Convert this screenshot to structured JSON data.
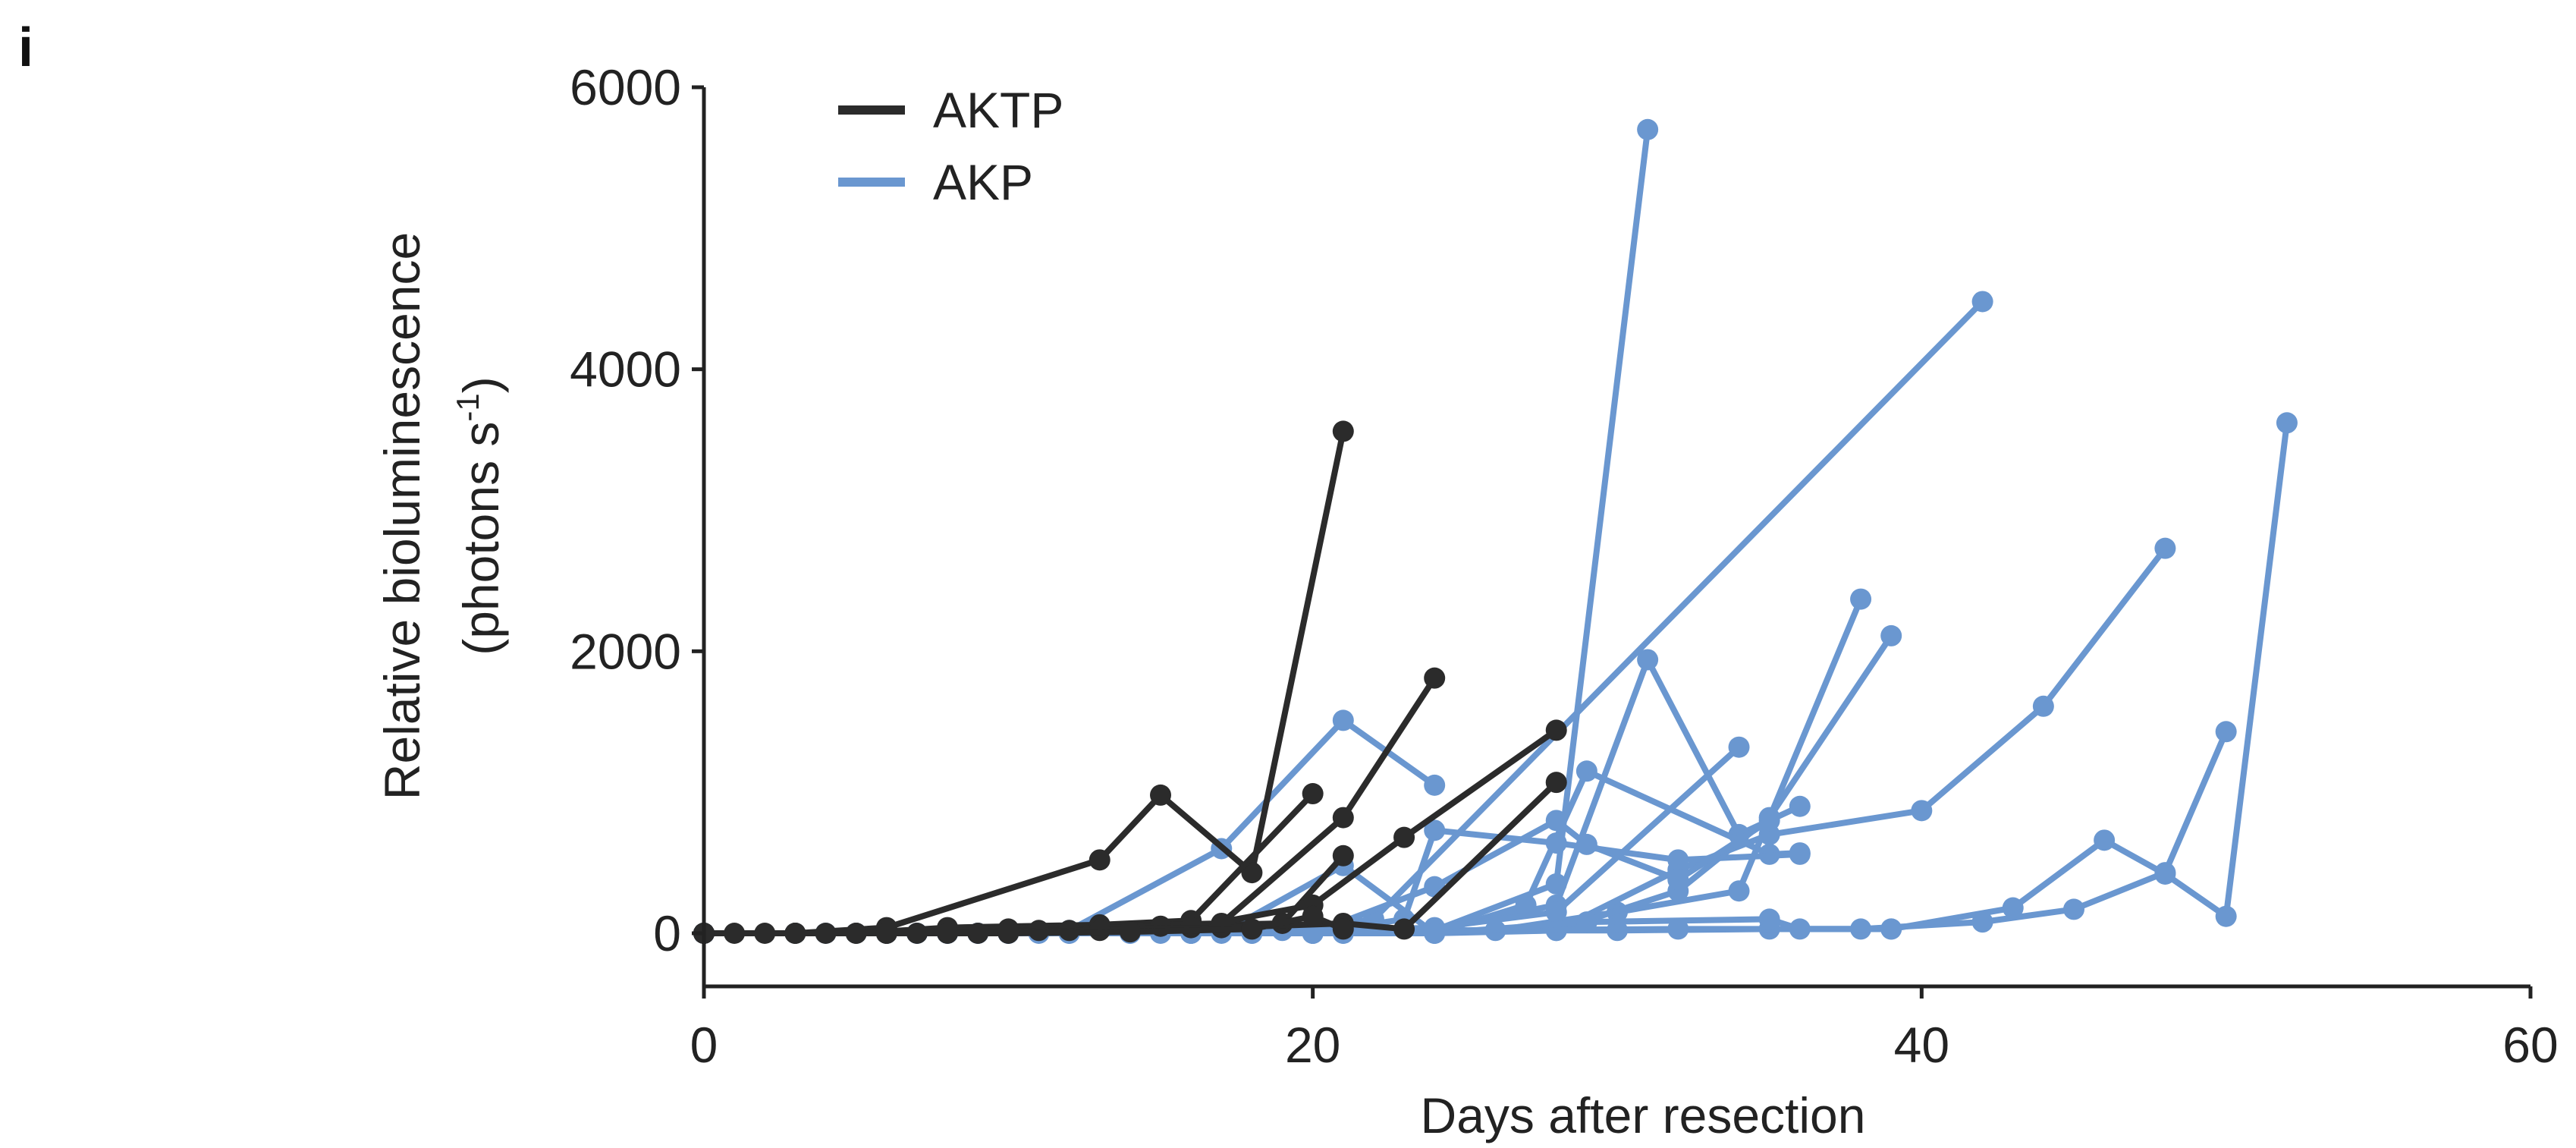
{
  "panel_label": "i",
  "chart_data": {
    "type": "line",
    "xlabel": "Days after resection",
    "ylabel_line1": "Relative bioluminescence",
    "ylabel_line2": "(photons s",
    "ylabel_sup": "-1",
    "ylabel_close": ")",
    "xlim": [
      0,
      60
    ],
    "ylim": [
      0,
      6000
    ],
    "xticks": [
      0,
      20,
      40,
      60
    ],
    "yticks": [
      0,
      2000,
      4000,
      6000
    ],
    "grid": false,
    "legend_position": "top-left",
    "colors": {
      "AKTP": "#2b2b2b",
      "AKP": "#6a97d0"
    },
    "legend": [
      {
        "name": "AKTP",
        "color": "#2b2b2b"
      },
      {
        "name": "AKP",
        "color": "#6a97d0"
      }
    ],
    "series": [
      {
        "group": "AKP",
        "points": [
          [
            0,
            0
          ],
          [
            3,
            0
          ],
          [
            6,
            0
          ],
          [
            9,
            0
          ],
          [
            12,
            20
          ],
          [
            17,
            600
          ],
          [
            21,
            1510
          ],
          [
            24,
            1050
          ]
        ]
      },
      {
        "group": "AKP",
        "points": [
          [
            0,
            0
          ],
          [
            4,
            0
          ],
          [
            8,
            0
          ],
          [
            12,
            0
          ],
          [
            16,
            0
          ],
          [
            20,
            0
          ],
          [
            24,
            20
          ],
          [
            28,
            350
          ],
          [
            31,
            5700
          ]
        ]
      },
      {
        "group": "AKP",
        "points": [
          [
            0,
            0
          ],
          [
            5,
            0
          ],
          [
            10,
            0
          ],
          [
            15,
            0
          ],
          [
            19,
            20
          ],
          [
            22,
            100
          ],
          [
            42,
            4480
          ]
        ]
      },
      {
        "group": "AKP",
        "points": [
          [
            0,
            0
          ],
          [
            6,
            0
          ],
          [
            11,
            0
          ],
          [
            16,
            0
          ],
          [
            21,
            0
          ],
          [
            26,
            20
          ],
          [
            30,
            150
          ],
          [
            34,
            300
          ],
          [
            38,
            2370
          ]
        ]
      },
      {
        "group": "AKP",
        "points": [
          [
            0,
            0
          ],
          [
            6,
            0
          ],
          [
            12,
            0
          ],
          [
            18,
            0
          ],
          [
            24,
            0
          ],
          [
            28,
            20
          ],
          [
            32,
            300
          ],
          [
            35,
            820
          ],
          [
            39,
            2110
          ]
        ]
      },
      {
        "group": "AKP",
        "points": [
          [
            0,
            0
          ],
          [
            7,
            0
          ],
          [
            14,
            0
          ],
          [
            20,
            0
          ],
          [
            24,
            30
          ],
          [
            28,
            200
          ],
          [
            31,
            1940
          ],
          [
            34,
            700
          ],
          [
            36,
            900
          ]
        ]
      },
      {
        "group": "AKP",
        "points": [
          [
            0,
            0
          ],
          [
            7,
            0
          ],
          [
            14,
            0
          ],
          [
            21,
            0
          ],
          [
            28,
            20
          ],
          [
            32,
            450
          ],
          [
            35,
            700
          ],
          [
            40,
            870
          ],
          [
            44,
            1610
          ],
          [
            48,
            2730
          ]
        ]
      },
      {
        "group": "AKP",
        "points": [
          [
            0,
            0
          ],
          [
            8,
            0
          ],
          [
            16,
            0
          ],
          [
            24,
            20
          ],
          [
            30,
            20
          ],
          [
            35,
            30
          ],
          [
            38,
            30
          ],
          [
            42,
            80
          ],
          [
            45,
            170
          ],
          [
            48,
            430
          ],
          [
            50,
            1430
          ]
        ]
      },
      {
        "group": "AKP",
        "points": [
          [
            0,
            0
          ],
          [
            8,
            0
          ],
          [
            16,
            0
          ],
          [
            24,
            20
          ],
          [
            32,
            30
          ],
          [
            39,
            30
          ],
          [
            43,
            180
          ],
          [
            46,
            660
          ],
          [
            48,
            420
          ],
          [
            50,
            120
          ],
          [
            52,
            3620
          ]
        ]
      },
      {
        "group": "AKP",
        "points": [
          [
            0,
            0
          ],
          [
            9,
            0
          ],
          [
            17,
            0
          ],
          [
            21,
            480
          ],
          [
            24,
            0
          ],
          [
            27,
            200
          ],
          [
            29,
            1150
          ],
          [
            35,
            560
          ],
          [
            36,
            570
          ]
        ]
      },
      {
        "group": "AKP",
        "points": [
          [
            0,
            0
          ],
          [
            9,
            0
          ],
          [
            18,
            0
          ],
          [
            24,
            40
          ],
          [
            28,
            150
          ],
          [
            34,
            1320
          ]
        ]
      },
      {
        "group": "AKP",
        "points": [
          [
            0,
            0
          ],
          [
            10,
            0
          ],
          [
            20,
            0
          ],
          [
            23,
            100
          ],
          [
            24,
            730
          ],
          [
            28,
            640
          ],
          [
            32,
            520
          ],
          [
            36,
            560
          ]
        ]
      },
      {
        "group": "AKP",
        "points": [
          [
            0,
            0
          ],
          [
            10,
            0
          ],
          [
            20,
            0
          ],
          [
            24,
            330
          ],
          [
            28,
            800
          ],
          [
            29,
            630
          ],
          [
            32,
            380
          ],
          [
            35,
            800
          ]
        ]
      },
      {
        "group": "AKP",
        "points": [
          [
            0,
            0
          ],
          [
            10,
            0
          ],
          [
            20,
            0
          ],
          [
            24,
            0
          ],
          [
            29,
            80
          ],
          [
            35,
            100
          ],
          [
            36,
            30
          ],
          [
            39,
            30
          ]
        ]
      },
      {
        "group": "AKTP",
        "points": [
          [
            0,
            0
          ],
          [
            1,
            0
          ],
          [
            2,
            0
          ],
          [
            3,
            0
          ],
          [
            6,
            40
          ],
          [
            13,
            520
          ],
          [
            15,
            980
          ],
          [
            18,
            430
          ],
          [
            21,
            3560
          ]
        ]
      },
      {
        "group": "AKTP",
        "points": [
          [
            0,
            0
          ],
          [
            3,
            0
          ],
          [
            5,
            0
          ],
          [
            8,
            40
          ],
          [
            13,
            60
          ],
          [
            16,
            90
          ],
          [
            20,
            990
          ]
        ]
      },
      {
        "group": "AKTP",
        "points": [
          [
            0,
            0
          ],
          [
            3,
            0
          ],
          [
            6,
            0
          ],
          [
            10,
            30
          ],
          [
            13,
            50
          ],
          [
            17,
            70
          ],
          [
            21,
            820
          ],
          [
            24,
            1810
          ]
        ]
      },
      {
        "group": "AKTP",
        "points": [
          [
            0,
            0
          ],
          [
            4,
            0
          ],
          [
            7,
            0
          ],
          [
            11,
            20
          ],
          [
            15,
            50
          ],
          [
            19,
            70
          ],
          [
            21,
            550
          ]
        ]
      },
      {
        "group": "AKTP",
        "points": [
          [
            0,
            0
          ],
          [
            5,
            0
          ],
          [
            8,
            0
          ],
          [
            12,
            20
          ],
          [
            16,
            40
          ],
          [
            20,
            200
          ],
          [
            23,
            680
          ],
          [
            28,
            1440
          ]
        ]
      },
      {
        "group": "AKTP",
        "points": [
          [
            0,
            0
          ],
          [
            6,
            0
          ],
          [
            9,
            0
          ],
          [
            13,
            20
          ],
          [
            17,
            40
          ],
          [
            21,
            70
          ],
          [
            23,
            30
          ],
          [
            28,
            1070
          ]
        ]
      },
      {
        "group": "AKTP",
        "points": [
          [
            0,
            0
          ],
          [
            6,
            0
          ],
          [
            10,
            0
          ],
          [
            14,
            10
          ],
          [
            18,
            30
          ],
          [
            20,
            120
          ],
          [
            21,
            30
          ]
        ]
      }
    ]
  }
}
